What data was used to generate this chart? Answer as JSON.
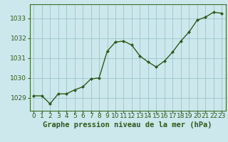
{
  "x": [
    0,
    1,
    2,
    3,
    4,
    5,
    6,
    7,
    8,
    9,
    10,
    11,
    12,
    13,
    14,
    15,
    16,
    17,
    18,
    19,
    20,
    21,
    22,
    23
  ],
  "y": [
    1029.1,
    1029.1,
    1028.7,
    1029.2,
    1029.2,
    1029.4,
    1029.55,
    1029.95,
    1030.0,
    1031.35,
    1031.8,
    1031.85,
    1031.65,
    1031.1,
    1030.8,
    1030.55,
    1030.85,
    1031.3,
    1031.85,
    1032.3,
    1032.9,
    1033.05,
    1033.3,
    1033.25
  ],
  "line_color": "#2d5a1b",
  "marker": "D",
  "marker_size": 2.2,
  "bg_color": "#cce8ec",
  "grid_color": "#9dc5cc",
  "text_color": "#2d5a1b",
  "xlabel": "Graphe pression niveau de la mer (hPa)",
  "xlabel_fontsize": 7.5,
  "ylabel_ticks": [
    1029,
    1030,
    1031,
    1032,
    1033
  ],
  "xlim": [
    -0.5,
    23.5
  ],
  "ylim": [
    1028.35,
    1033.7
  ],
  "xtick_labels": [
    "0",
    "1",
    "2",
    "3",
    "4",
    "5",
    "6",
    "7",
    "8",
    "9",
    "10",
    "11",
    "12",
    "13",
    "14",
    "15",
    "16",
    "17",
    "18",
    "19",
    "20",
    "21",
    "22",
    "23"
  ],
  "tick_fontsize": 6.5,
  "line_width": 1.0,
  "spine_color": "#3a6b28"
}
